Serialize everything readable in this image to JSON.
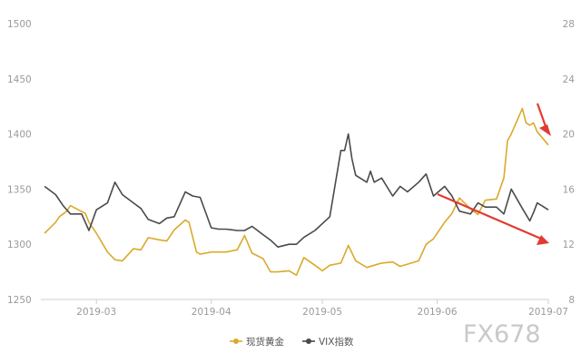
{
  "chart_data": {
    "type": "line",
    "x_tick_labels": [
      "2019-03",
      "2019-04",
      "2019-05",
      "2019-06",
      "2019-07"
    ],
    "y_left": {
      "ticks": [
        1250,
        1300,
        1350,
        1400,
        1450,
        1500
      ],
      "lim": [
        1250,
        1500
      ]
    },
    "y_right": {
      "ticks": [
        8,
        12,
        16,
        20,
        24,
        28
      ],
      "lim": [
        8,
        28
      ]
    },
    "grid": false,
    "legend_position": "bottom",
    "series": [
      {
        "name": "现货黄金",
        "axis": "left",
        "color": "#d9aa2a",
        "x": [
          "2019-02-15",
          "2019-02-18",
          "2019-02-19",
          "2019-02-21",
          "2019-02-22",
          "2019-02-26",
          "2019-02-27",
          "2019-02-28",
          "2019-03-01",
          "2019-03-04",
          "2019-03-06",
          "2019-03-08",
          "2019-03-11",
          "2019-03-13",
          "2019-03-15",
          "2019-03-18",
          "2019-03-20",
          "2019-03-22",
          "2019-03-25",
          "2019-03-26",
          "2019-03-28",
          "2019-03-29",
          "2019-04-01",
          "2019-04-03",
          "2019-04-05",
          "2019-04-08",
          "2019-04-10",
          "2019-04-12",
          "2019-04-15",
          "2019-04-17",
          "2019-04-19",
          "2019-04-22",
          "2019-04-24",
          "2019-04-26",
          "2019-04-29",
          "2019-05-01",
          "2019-05-03",
          "2019-05-06",
          "2019-05-08",
          "2019-05-10",
          "2019-05-13",
          "2019-05-15",
          "2019-05-17",
          "2019-05-20",
          "2019-05-22",
          "2019-05-24",
          "2019-05-27",
          "2019-05-29",
          "2019-05-31",
          "2019-06-03",
          "2019-06-05",
          "2019-06-07",
          "2019-06-10",
          "2019-06-12",
          "2019-06-14",
          "2019-06-17",
          "2019-06-19",
          "2019-06-20",
          "2019-06-21",
          "2019-06-24",
          "2019-06-25",
          "2019-06-26",
          "2019-06-27",
          "2019-06-28",
          "2019-07-01"
        ],
        "values": [
          1310,
          1320,
          1325,
          1330,
          1335,
          1328,
          1320,
          1315,
          1310,
          1293,
          1286,
          1285,
          1296,
          1295,
          1306,
          1304,
          1303,
          1313,
          1322,
          1320,
          1293,
          1291,
          1293,
          1293,
          1293,
          1295,
          1308,
          1292,
          1287,
          1275,
          1275,
          1276,
          1272,
          1288,
          1281,
          1276,
          1281,
          1283,
          1299,
          1285,
          1279,
          1281,
          1283,
          1284,
          1280,
          1282,
          1285,
          1300,
          1305,
          1320,
          1328,
          1342,
          1332,
          1327,
          1340,
          1341,
          1360,
          1394,
          1400,
          1423,
          1410,
          1408,
          1410,
          1402,
          1390
        ]
      },
      {
        "name": "VIX指数",
        "axis": "right",
        "color": "#4a4a4a",
        "x": [
          "2019-02-15",
          "2019-02-18",
          "2019-02-20",
          "2019-02-22",
          "2019-02-25",
          "2019-02-27",
          "2019-03-01",
          "2019-03-04",
          "2019-03-06",
          "2019-03-08",
          "2019-03-11",
          "2019-03-13",
          "2019-03-15",
          "2019-03-18",
          "2019-03-20",
          "2019-03-22",
          "2019-03-25",
          "2019-03-27",
          "2019-03-29",
          "2019-04-01",
          "2019-04-03",
          "2019-04-05",
          "2019-04-08",
          "2019-04-10",
          "2019-04-12",
          "2019-04-15",
          "2019-04-17",
          "2019-04-19",
          "2019-04-22",
          "2019-04-24",
          "2019-04-26",
          "2019-04-29",
          "2019-05-01",
          "2019-05-03",
          "2019-05-06",
          "2019-05-07",
          "2019-05-08",
          "2019-05-09",
          "2019-05-10",
          "2019-05-13",
          "2019-05-14",
          "2019-05-15",
          "2019-05-17",
          "2019-05-20",
          "2019-05-22",
          "2019-05-24",
          "2019-05-27",
          "2019-05-29",
          "2019-05-31",
          "2019-06-03",
          "2019-06-05",
          "2019-06-07",
          "2019-06-10",
          "2019-06-12",
          "2019-06-14",
          "2019-06-17",
          "2019-06-19",
          "2019-06-21",
          "2019-06-24",
          "2019-06-26",
          "2019-06-27",
          "2019-06-28",
          "2019-07-01"
        ],
        "values": [
          16.2,
          15.6,
          14.8,
          14.2,
          14.2,
          13.0,
          14.5,
          15.0,
          16.5,
          15.6,
          15.0,
          14.6,
          13.8,
          13.5,
          13.9,
          14.0,
          15.8,
          15.5,
          15.4,
          13.2,
          13.1,
          13.1,
          13.0,
          13.0,
          13.3,
          12.7,
          12.3,
          11.8,
          12.0,
          12.0,
          12.5,
          13.0,
          13.5,
          14.0,
          18.8,
          18.8,
          20.0,
          18.2,
          17.0,
          16.5,
          17.3,
          16.5,
          16.8,
          15.5,
          16.2,
          15.8,
          16.5,
          17.1,
          15.5,
          16.2,
          15.5,
          14.4,
          14.2,
          15.0,
          14.7,
          14.7,
          14.2,
          16.0,
          14.6,
          13.7,
          14.3,
          15.0,
          14.5
        ]
      }
    ]
  },
  "watermark": "FX678"
}
